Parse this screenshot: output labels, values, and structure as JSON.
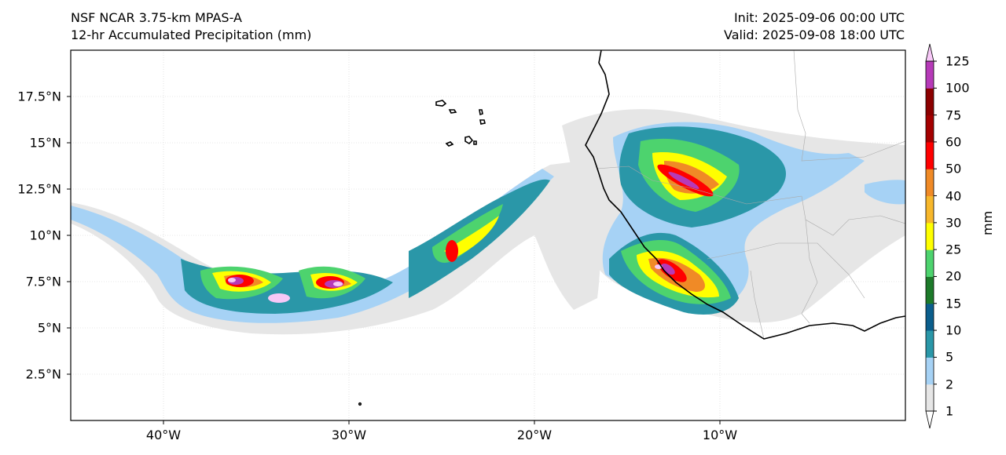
{
  "header": {
    "model": "NSF NCAR 3.75-km MPAS-A",
    "field": "12-hr Accumulated Precipitation (mm)",
    "init": "Init: 2025-09-06 00:00 UTC",
    "valid": "Valid: 2025-09-08 18:00 UTC"
  },
  "map": {
    "lon_range": [
      -45,
      0
    ],
    "lat_range": [
      0,
      20
    ],
    "lat_ticks": [
      "17.5°N",
      "15°N",
      "12.5°N",
      "10°N",
      "7.5°N",
      "5°N",
      "2.5°N"
    ],
    "lon_ticks": [
      "40°W",
      "30°W",
      "20°W",
      "10°W"
    ],
    "gridlines": true,
    "coastline_color": "#000000"
  },
  "colorbar": {
    "label": "mm",
    "levels": [
      "1",
      "2",
      "5",
      "10",
      "15",
      "20",
      "25",
      "30",
      "40",
      "50",
      "60",
      "75",
      "100",
      "125"
    ],
    "colors": [
      "#e6e6e6",
      "#a6d2f5",
      "#2a97a8",
      "#0b5e8c",
      "#1d7a2a",
      "#4dd36e",
      "#ffff00",
      "#f7b72b",
      "#f08a26",
      "#ff0000",
      "#a40000",
      "#8c0000",
      "#b63ab8",
      "#f7c8f7"
    ],
    "extend": "both"
  }
}
